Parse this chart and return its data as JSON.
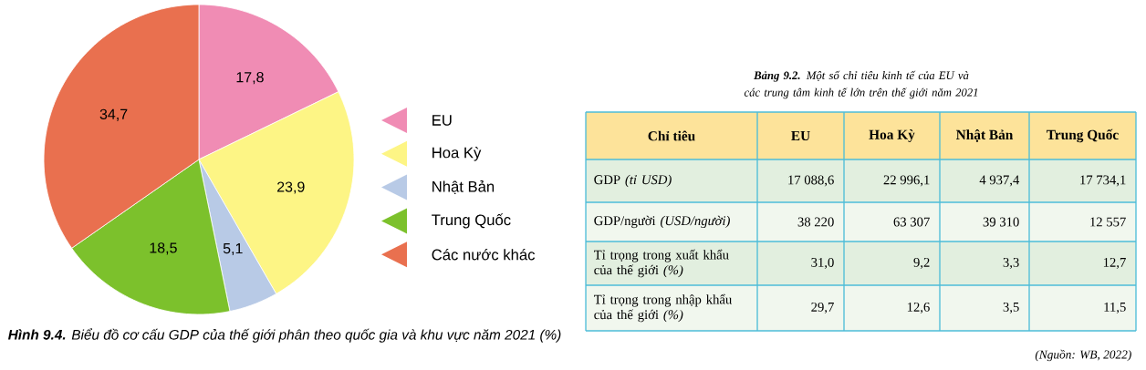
{
  "chart_data": [
    {
      "type": "pie",
      "title": "**Hình 9.4.** Biểu đồ cơ cấu GDP của thế giới phân theo quốc gia và khu vực năm 2021 (%)",
      "categories": [
        "EU",
        "Hoa Kỳ",
        "Nhật Bản",
        "Trung Quốc",
        "Các nước khác"
      ],
      "values": [
        17.8,
        23.9,
        5.1,
        18.5,
        34.7
      ],
      "colors": [
        "#f08cb4",
        "#fdf585",
        "#b8cae6",
        "#7cc12c",
        "#e9704f"
      ],
      "value_labels": [
        "17,8",
        "23,9",
        "5,1",
        "18,5",
        "34,7"
      ],
      "legend": "right"
    },
    {
      "type": "other",
      "title": "**Bảng 9.2.** Một số chỉ tiêu kinh tế của EU và các trung tâm kinh tế lớn trên thế giới năm 2021",
      "categories": [
        "Chỉ tiêu",
        "EU",
        "Hoa Kỳ",
        "Nhật Bản",
        "Trung Quốc"
      ],
      "y_categories": [
        "GDP *(tỉ USD)*",
        "GDP/người *(USD/người)*",
        "Tỉ trọng trong xuất khẩu của thế giới *(%)*",
        "Tỉ trọng trong nhập khẩu của thế giới *(%)*"
      ],
      "cell_labels": [
        [
          "17 088,6",
          "22 996,1",
          "4 937,4",
          "17 734,1"
        ],
        [
          "38 220",
          "63 307",
          "39 310",
          "12 557"
        ],
        [
          "31,0",
          "9,2",
          "3,3",
          "12,7"
        ],
        [
          "29,7",
          "12,6",
          "3,5",
          "11,5"
        ]
      ],
      "annotations": [
        "(Nguồn: WB, 2022)"
      ]
    }
  ]
}
